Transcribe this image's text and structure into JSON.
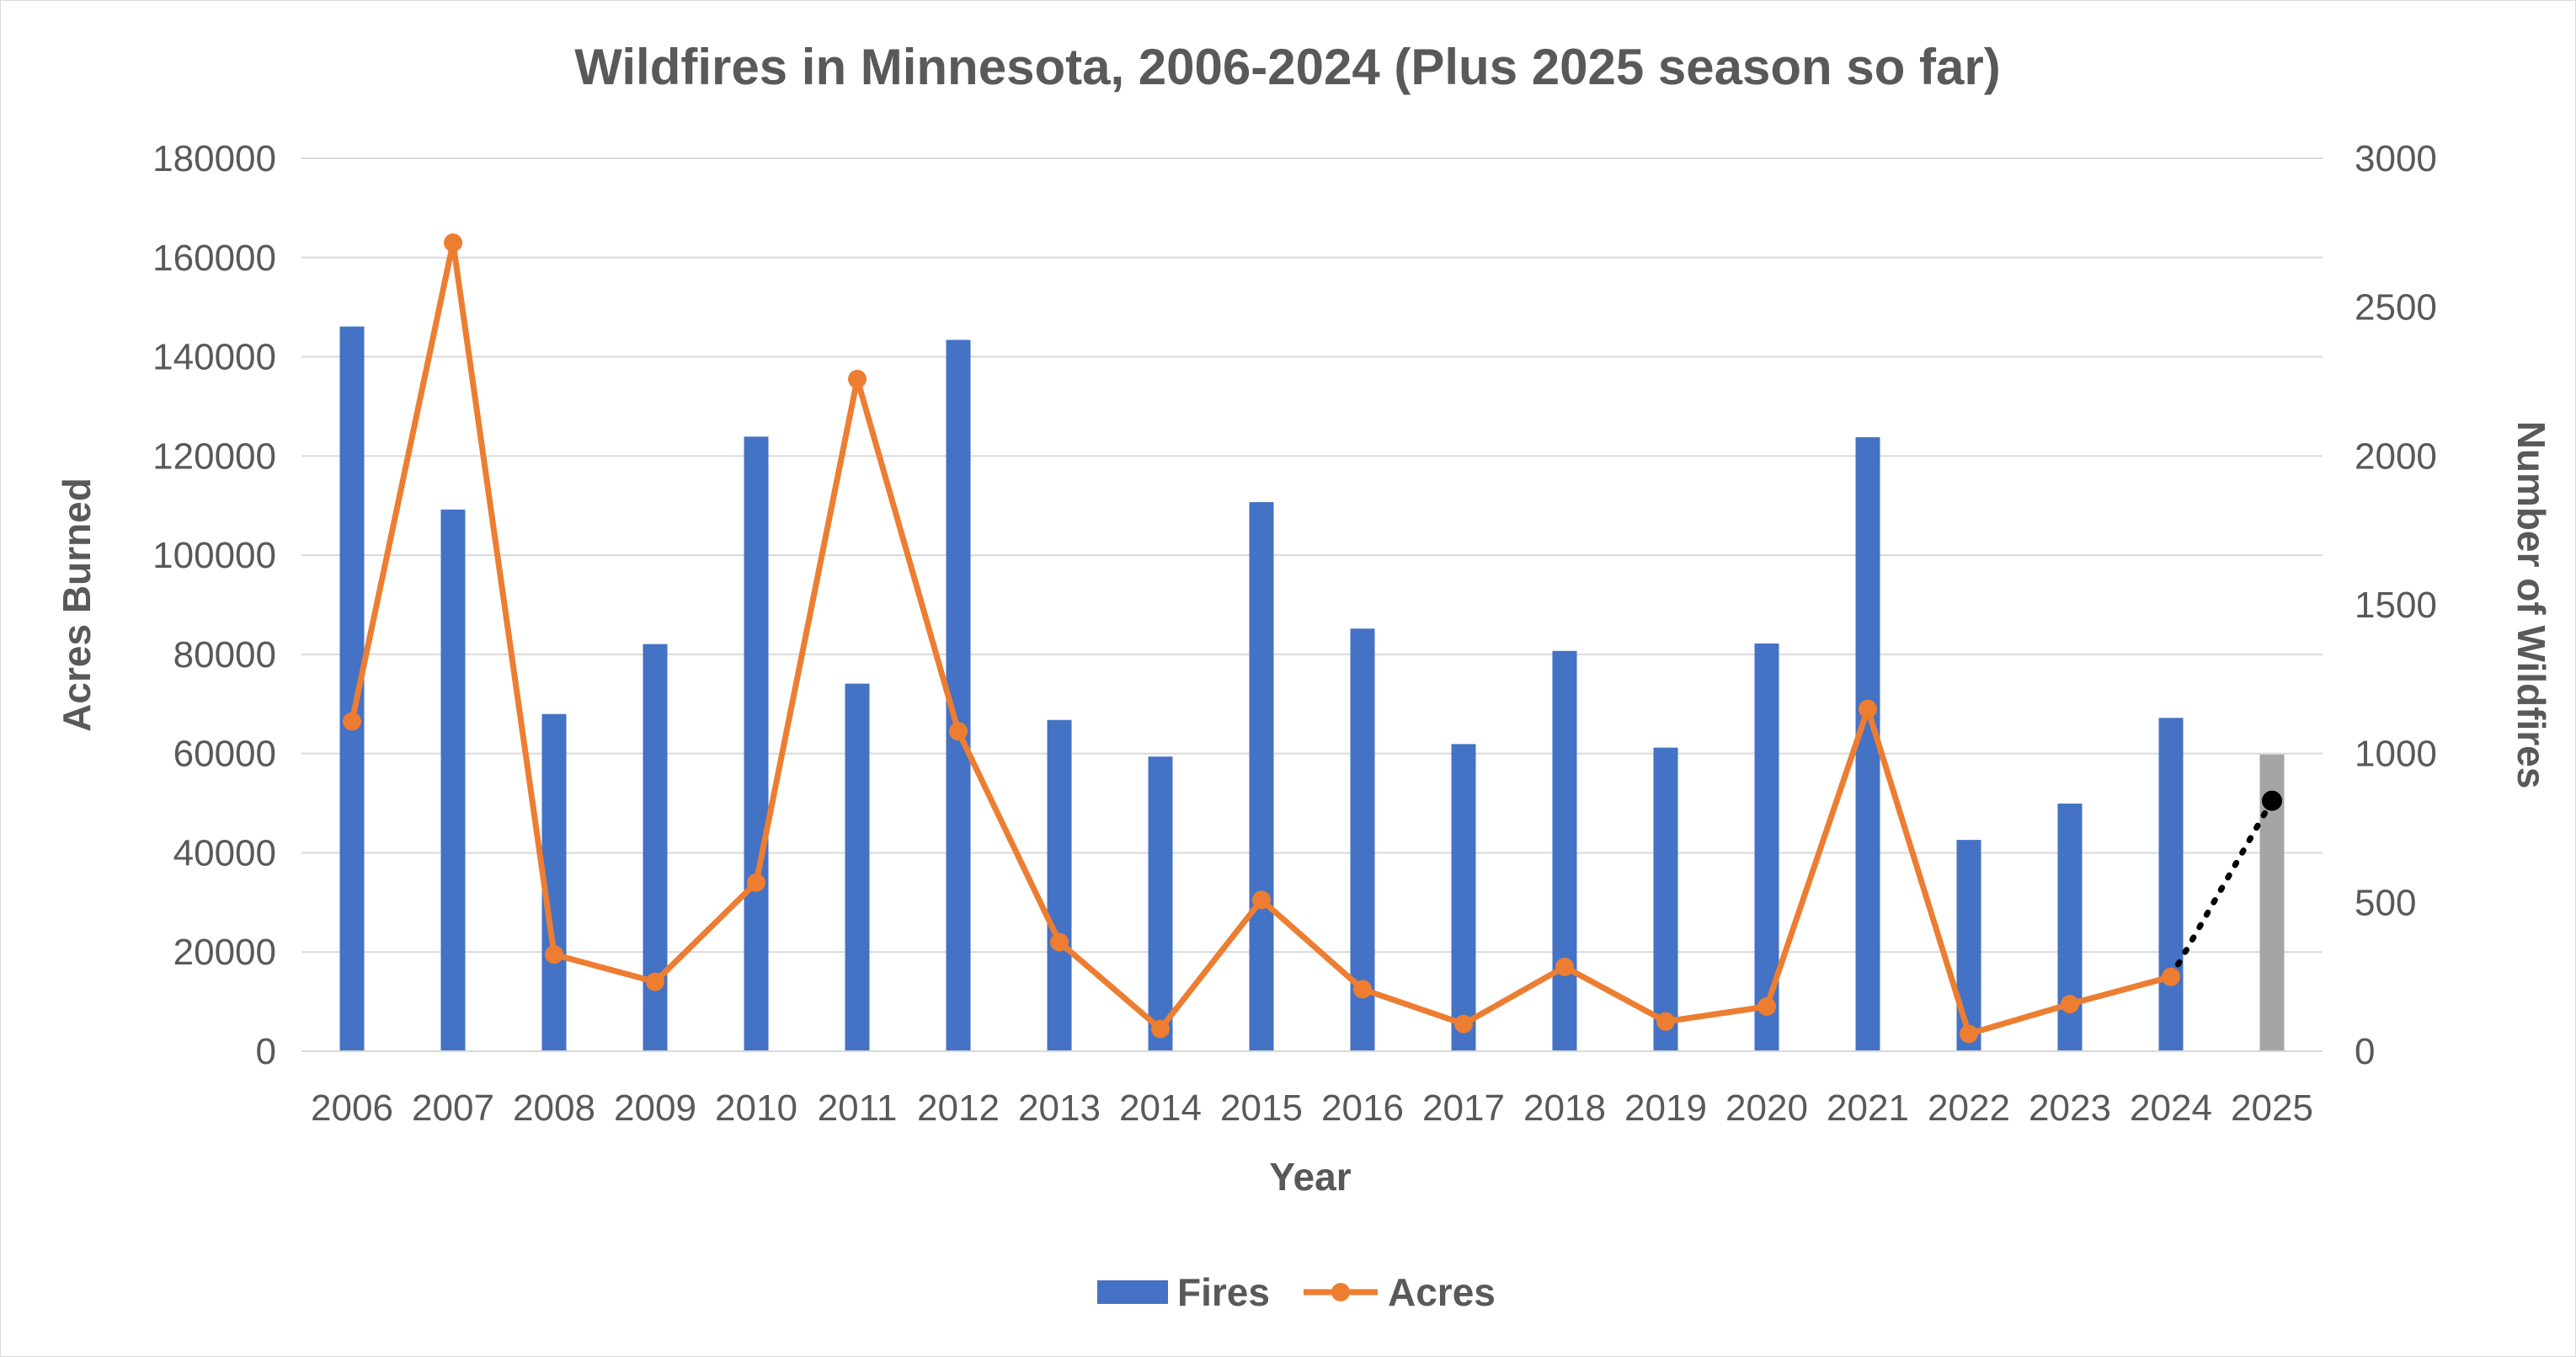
{
  "chart_data": {
    "type": "bar+line",
    "title": "Wildfires in Minnesota, 2006-2024 (Plus 2025 season so far)",
    "xlabel": "Year",
    "ylabel_left": "Acres Burned",
    "ylabel_right": "Number of Wildfires",
    "ylim_left": [
      0,
      180000
    ],
    "ylim_right": [
      0,
      3000
    ],
    "yticks_left": [
      "0",
      "20000",
      "40000",
      "60000",
      "80000",
      "100000",
      "120000",
      "140000",
      "160000",
      "180000"
    ],
    "yticks_right": [
      "0",
      "500",
      "1000",
      "1500",
      "2000",
      "2500",
      "3000"
    ],
    "grid": true,
    "legend_position": "bottom",
    "categories": [
      "2006",
      "2007",
      "2008",
      "2009",
      "2010",
      "2011",
      "2012",
      "2013",
      "2014",
      "2015",
      "2016",
      "2017",
      "2018",
      "2019",
      "2020",
      "2021",
      "2022",
      "2023",
      "2024",
      "2025"
    ],
    "series": [
      {
        "name": "Fires",
        "type": "bar",
        "axis": "right",
        "color": "#4472C4",
        "highlight_color": "#A5A5A5",
        "highlight_index": 19,
        "values": [
          2435,
          1820,
          1133,
          1368,
          2065,
          1235,
          2390,
          1113,
          990,
          1845,
          1420,
          1032,
          1345,
          1020,
          1370,
          2063,
          710,
          832,
          1120,
          997
        ]
      },
      {
        "name": "Acres",
        "type": "line",
        "axis": "left",
        "color": "#ED7D31",
        "values": [
          66500,
          163000,
          19500,
          14000,
          34000,
          135500,
          64500,
          22000,
          4500,
          30500,
          12500,
          5500,
          17000,
          6000,
          9000,
          69000,
          3500,
          9500,
          15000,
          null
        ]
      },
      {
        "name": "",
        "type": "dotted-projection",
        "axis": "left",
        "color": "#000000",
        "x": [
          "2024",
          "2025"
        ],
        "values": [
          15000,
          50500
        ]
      }
    ]
  }
}
